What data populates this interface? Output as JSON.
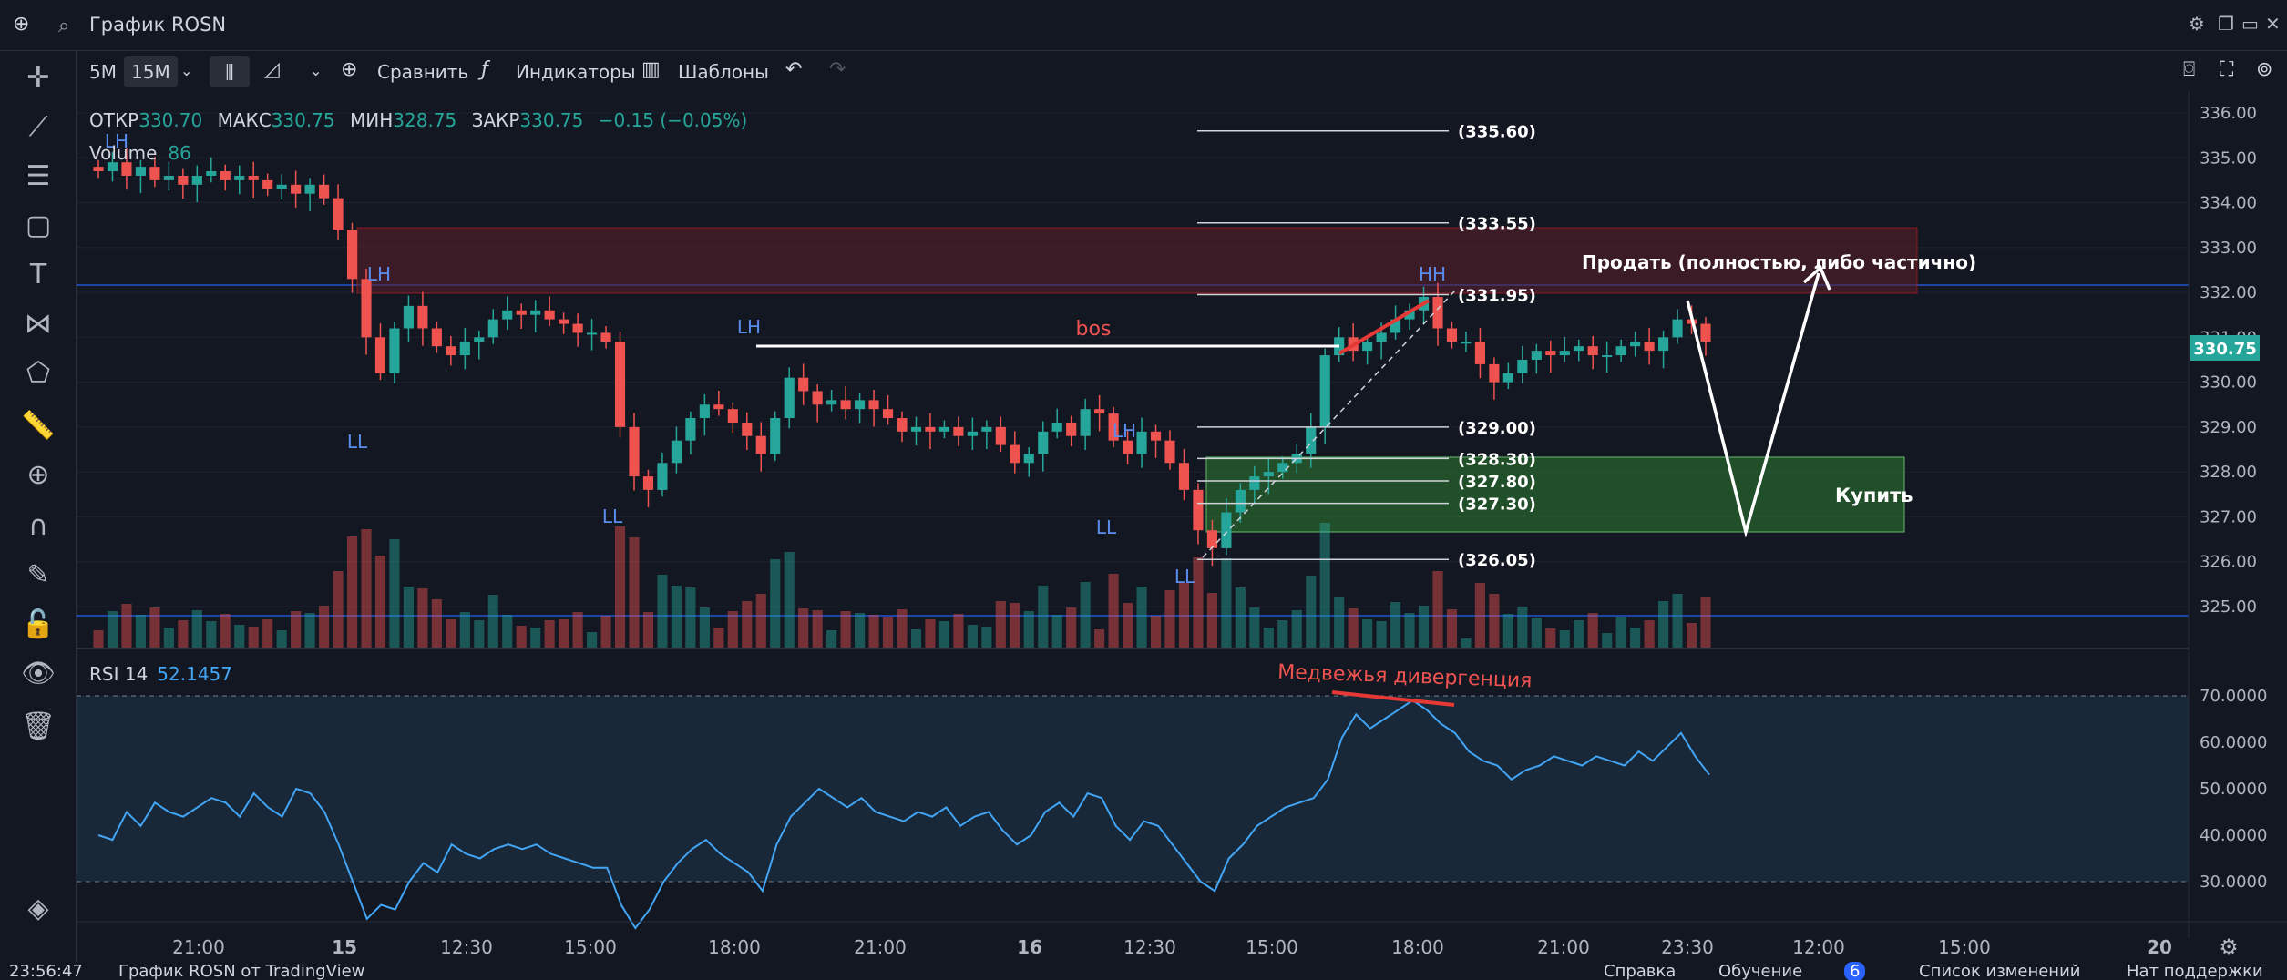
{
  "window": {
    "title": "График ROSN"
  },
  "toolbar": {
    "interval_5m": "5M",
    "interval_15m": "15M",
    "compare": "Сравнить",
    "indicators": "Индикаторы",
    "templates": "Шаблоны"
  },
  "legend": {
    "open_label": "ОТКР",
    "open_value": "330.70",
    "high_label": "МАКС",
    "high_value": "330.75",
    "low_label": "МИН",
    "low_value": "328.75",
    "close_label": "ЗАКР",
    "close_value": "330.75",
    "change": "−0.15 (−0.05%)",
    "volume_label": "Volume",
    "volume_value": "86",
    "rsi_label": "RSI 14",
    "rsi_value": "52.1457"
  },
  "price_axis": {
    "ticks": [
      "336.00",
      "335.00",
      "334.00",
      "333.00",
      "332.00",
      "331.00",
      "330.00",
      "329.00",
      "328.00",
      "327.00",
      "326.00",
      "325.00"
    ],
    "current_price": "330.75"
  },
  "rsi_axis": {
    "ticks": [
      "70.0000",
      "60.0000",
      "50.0000",
      "40.0000",
      "30.0000"
    ]
  },
  "time_axis": {
    "ticks": [
      "21:00",
      "15",
      "12:30",
      "15:00",
      "18:00",
      "21:00",
      "16",
      "12:30",
      "15:00",
      "18:00",
      "21:00",
      "23:30",
      "12:00",
      "15:00",
      "20"
    ]
  },
  "fib_levels": [
    "(335.60)",
    "(333.55)",
    "(331.95)",
    "(329.00)",
    "(328.30)",
    "(327.80)",
    "(327.30)",
    "(326.05)"
  ],
  "annotations": {
    "sell_text": "Продать (полностью, либо частично)",
    "buy_text": "Купить",
    "bos": "bos",
    "divergence": "Медвежья дивергенция",
    "swing_labels": [
      "LH",
      "LH",
      "LL",
      "LH",
      "LL",
      "LH",
      "LL",
      "LL",
      "HH"
    ]
  },
  "bottom": {
    "clock": "23:56:47",
    "chart_by": "График ROSN от TradingView",
    "help": "Справка",
    "learning": "Обучение",
    "learning_badge": "6",
    "changelog": "Список изменений",
    "support": "Нат поддержки"
  },
  "colors": {
    "bg": "#131722",
    "up": "#26a69a",
    "down": "#ef5350",
    "sell_zone": "#5d1f2a",
    "buy_zone": "#2e7d32",
    "rsi_line": "#42a5f5",
    "current_price_bg": "#26a69a"
  },
  "chart_data": {
    "type": "candlestick",
    "price_range": [
      324.6,
      336.3
    ],
    "closes": [
      334.7,
      334.9,
      334.6,
      334.8,
      334.5,
      334.6,
      334.4,
      334.6,
      334.7,
      334.5,
      334.6,
      334.5,
      334.3,
      334.4,
      334.2,
      334.4,
      334.1,
      333.4,
      332.3,
      331.0,
      330.2,
      331.2,
      331.7,
      331.2,
      330.8,
      330.6,
      330.9,
      331.0,
      331.4,
      331.6,
      331.5,
      331.6,
      331.4,
      331.3,
      331.1,
      331.1,
      330.9,
      329.0,
      327.9,
      327.6,
      328.2,
      328.7,
      329.2,
      329.5,
      329.4,
      329.1,
      328.8,
      328.4,
      329.2,
      330.1,
      329.8,
      329.5,
      329.6,
      329.4,
      329.6,
      329.4,
      329.2,
      328.9,
      329.0,
      328.9,
      329.0,
      328.8,
      328.9,
      329.0,
      328.6,
      328.2,
      328.4,
      328.9,
      329.1,
      328.8,
      329.4,
      329.3,
      328.7,
      328.4,
      328.9,
      328.7,
      328.2,
      327.6,
      326.7,
      326.3,
      327.1,
      327.6,
      327.9,
      328.0,
      328.2,
      328.4,
      329.0,
      330.6,
      331.0,
      330.7,
      330.9,
      331.1,
      331.4,
      331.6,
      331.9,
      331.2,
      330.9,
      330.9,
      330.4,
      330.0,
      330.2,
      330.5,
      330.7,
      330.6,
      330.7,
      330.8,
      330.6,
      330.6,
      330.8,
      330.9,
      330.7,
      331.0,
      331.4,
      331.3,
      330.9
    ],
    "rsi": [
      40,
      39,
      45,
      42,
      47,
      45,
      44,
      46,
      48,
      47,
      44,
      49,
      46,
      44,
      50,
      49,
      45,
      38,
      30,
      22,
      25,
      24,
      30,
      34,
      32,
      38,
      36,
      35,
      37,
      38,
      37,
      38,
      36,
      35,
      34,
      33,
      33,
      25,
      20,
      24,
      30,
      34,
      37,
      39,
      36,
      34,
      32,
      28,
      38,
      44,
      47,
      50,
      48,
      46,
      48,
      45,
      44,
      43,
      45,
      44,
      46,
      42,
      44,
      45,
      41,
      38,
      40,
      45,
      47,
      44,
      49,
      48,
      42,
      39,
      43,
      42,
      38,
      34,
      30,
      28,
      35,
      38,
      42,
      44,
      46,
      47,
      48,
      52,
      61,
      66,
      63,
      65,
      67,
      69,
      67,
      64,
      62,
      58,
      56,
      55,
      52,
      54,
      55,
      57,
      56,
      55,
      57,
      56,
      55,
      58,
      56,
      59,
      62,
      57,
      53
    ],
    "volume_max": 86
  }
}
